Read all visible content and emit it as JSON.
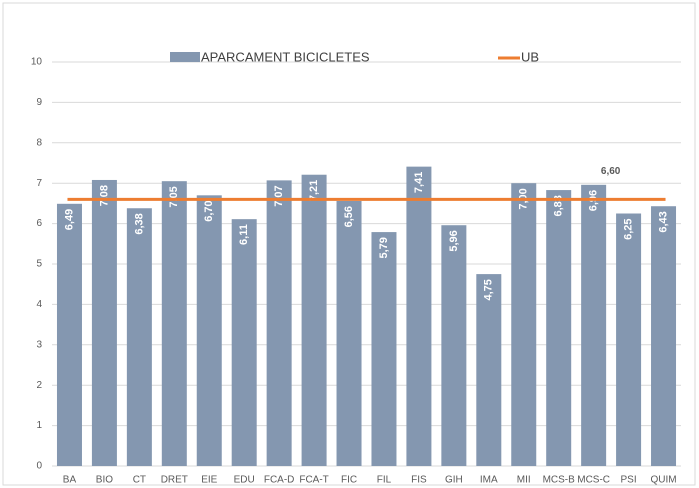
{
  "chart_data": {
    "type": "bar",
    "categories": [
      "BA",
      "BIO",
      "CT",
      "DRET",
      "EIE",
      "EDU",
      "FCA-D",
      "FCA-T",
      "FIC",
      "FIL",
      "FIS",
      "GIH",
      "IMA",
      "MII",
      "MCS-B",
      "MCS-C",
      "PSI",
      "QUIM"
    ],
    "series": [
      {
        "name": "APARCAMENT BICICLETES",
        "color": "#8497b0",
        "values": [
          6.49,
          7.08,
          6.38,
          7.05,
          6.7,
          6.11,
          7.07,
          7.21,
          6.56,
          5.79,
          7.41,
          5.96,
          4.75,
          7.0,
          6.83,
          6.96,
          6.25,
          6.43
        ],
        "value_labels": [
          "6,49",
          "7,08",
          "6,38",
          "7,05",
          "6,70",
          "6,11",
          "7,07",
          "7,21",
          "6,56",
          "5,79",
          "7,41",
          "5,96",
          "4,75",
          "7,00",
          "6,83",
          "6,96",
          "6,25",
          "6,43"
        ]
      }
    ],
    "line": {
      "name": "UB",
      "color": "#ed7d31",
      "value": 6.6,
      "value_label": "6,60"
    },
    "ylim": [
      0,
      10
    ],
    "yticks": [
      0,
      1,
      2,
      3,
      4,
      5,
      6,
      7,
      8,
      9,
      10
    ],
    "grid": true,
    "legend": "top"
  }
}
